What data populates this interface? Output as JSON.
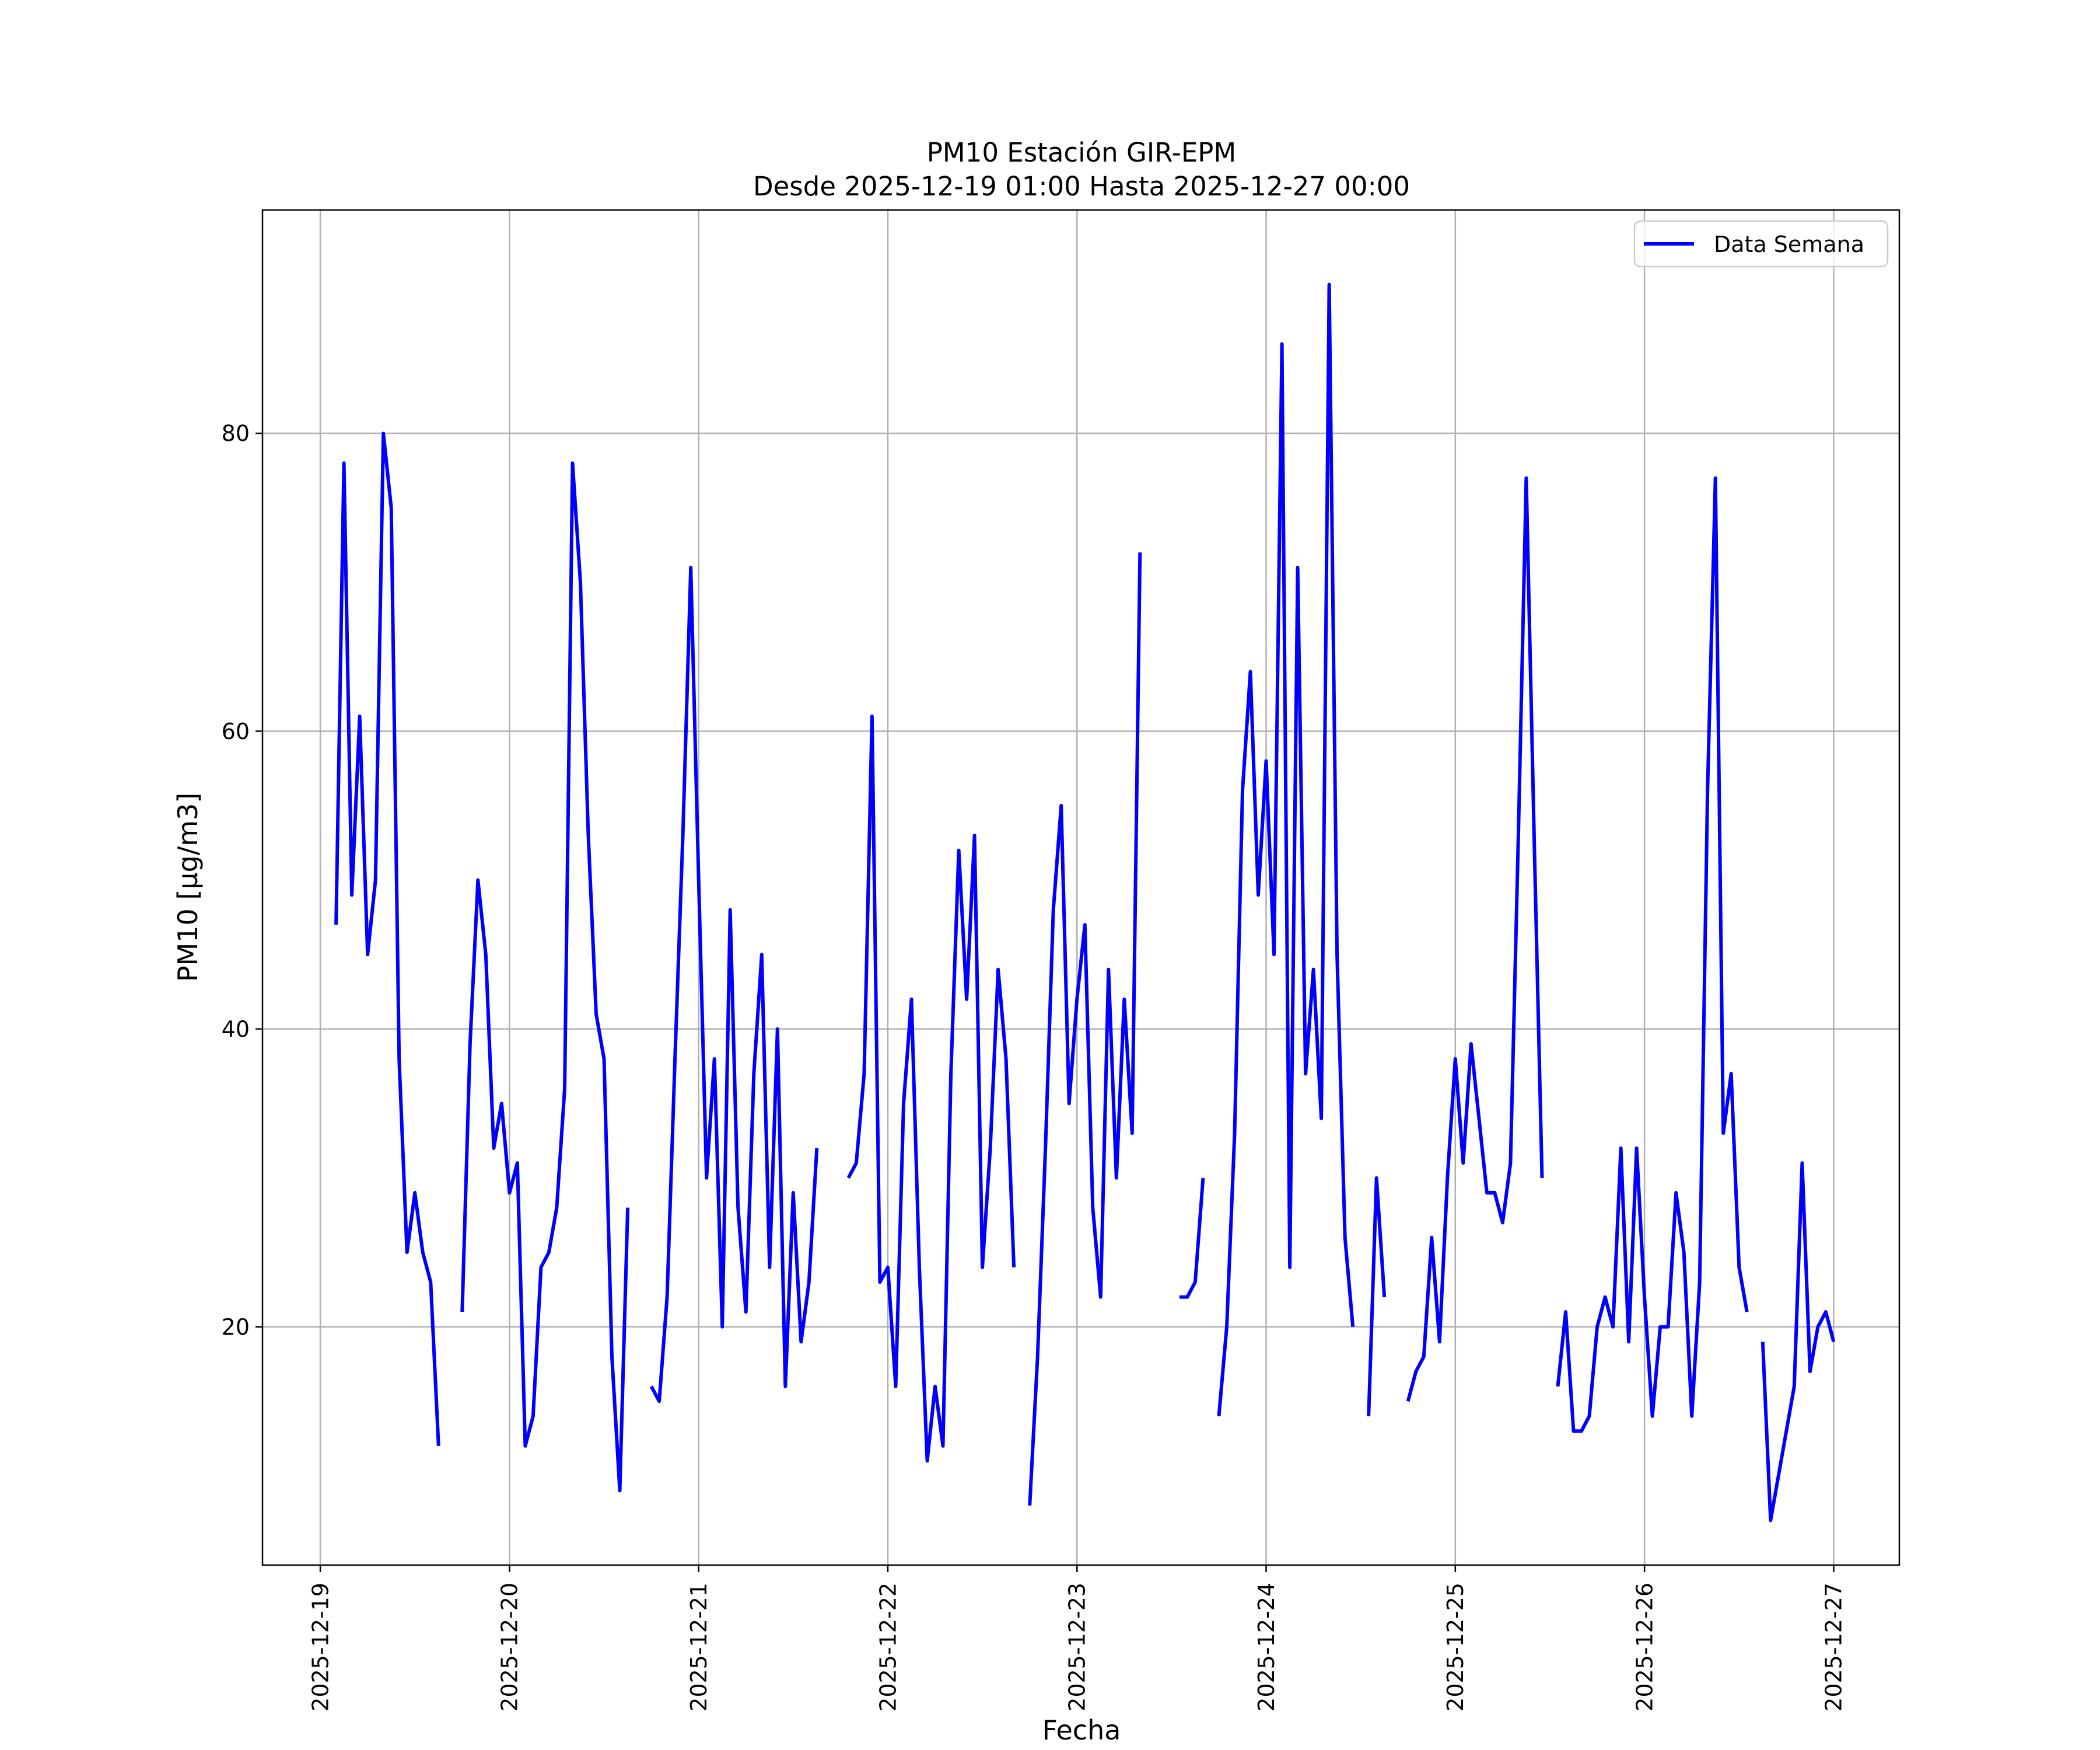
{
  "chart_data": {
    "type": "line",
    "title": "PM10 Estación GIR-EPM",
    "subtitle": "Desde 2025-12-19 01:00 Hasta 2025-12-27 00:00",
    "xlabel": "Fecha",
    "ylabel": "PM10 [μg/m3]",
    "xlim": [
      "2025-12-18 16:40",
      "2025-12-27 08:20"
    ],
    "ylim": [
      4,
      95
    ],
    "x_ticks": [
      "2025-12-19",
      "2025-12-20",
      "2025-12-21",
      "2025-12-22",
      "2025-12-23",
      "2025-12-24",
      "2025-12-25",
      "2025-12-26",
      "2025-12-27"
    ],
    "y_ticks": [
      20,
      40,
      60,
      80
    ],
    "grid": true,
    "legend": "top-right",
    "series": [
      {
        "name": "Data Semana",
        "color": "#0000ff",
        "segments": [
          [
            [
              "2025-12-19 02:00",
              47
            ],
            [
              "2025-12-19 03:00",
              78
            ],
            [
              "2025-12-19 04:00",
              49
            ],
            [
              "2025-12-19 05:00",
              61
            ],
            [
              "2025-12-19 06:00",
              45
            ],
            [
              "2025-12-19 07:00",
              50
            ],
            [
              "2025-12-19 08:00",
              80
            ],
            [
              "2025-12-19 09:00",
              75
            ],
            [
              "2025-12-19 10:00",
              38
            ],
            [
              "2025-12-19 11:00",
              25
            ],
            [
              "2025-12-19 12:00",
              29
            ],
            [
              "2025-12-19 13:00",
              25
            ],
            [
              "2025-12-19 14:00",
              23
            ],
            [
              "2025-12-19 15:00",
              12
            ]
          ],
          [
            [
              "2025-12-19 18:00",
              21
            ],
            [
              "2025-12-19 19:00",
              39
            ],
            [
              "2025-12-19 20:00",
              50
            ],
            [
              "2025-12-19 21:00",
              45
            ],
            [
              "2025-12-19 22:00",
              32
            ],
            [
              "2025-12-19 23:00",
              35
            ],
            [
              "2025-12-20 00:00",
              29
            ],
            [
              "2025-12-20 01:00",
              31
            ],
            [
              "2025-12-20 02:00",
              12
            ],
            [
              "2025-12-20 03:00",
              14
            ],
            [
              "2025-12-20 04:00",
              24
            ],
            [
              "2025-12-20 05:00",
              25
            ],
            [
              "2025-12-20 06:00",
              28
            ],
            [
              "2025-12-20 07:00",
              36
            ],
            [
              "2025-12-20 08:00",
              78
            ],
            [
              "2025-12-20 09:00",
              70
            ],
            [
              "2025-12-20 10:00",
              53
            ],
            [
              "2025-12-20 11:00",
              41
            ],
            [
              "2025-12-20 12:00",
              38
            ],
            [
              "2025-12-20 13:00",
              18
            ],
            [
              "2025-12-20 14:00",
              9
            ],
            [
              "2025-12-20 15:00",
              28
            ]
          ],
          [
            [
              "2025-12-20 18:00",
              16
            ],
            [
              "2025-12-20 19:00",
              15
            ],
            [
              "2025-12-20 20:00",
              22
            ],
            [
              "2025-12-20 21:00",
              38
            ],
            [
              "2025-12-20 22:00",
              53
            ],
            [
              "2025-12-20 23:00",
              71
            ],
            [
              "2025-12-21 00:00",
              50
            ],
            [
              "2025-12-21 01:00",
              30
            ],
            [
              "2025-12-21 02:00",
              38
            ],
            [
              "2025-12-21 03:00",
              20
            ],
            [
              "2025-12-21 04:00",
              48
            ],
            [
              "2025-12-21 05:00",
              28
            ],
            [
              "2025-12-21 06:00",
              21
            ],
            [
              "2025-12-21 07:00",
              37
            ],
            [
              "2025-12-21 08:00",
              45
            ],
            [
              "2025-12-21 09:00",
              24
            ],
            [
              "2025-12-21 10:00",
              40
            ],
            [
              "2025-12-21 11:00",
              16
            ],
            [
              "2025-12-21 12:00",
              29
            ],
            [
              "2025-12-21 13:00",
              19
            ],
            [
              "2025-12-21 14:00",
              23
            ],
            [
              "2025-12-21 15:00",
              32
            ]
          ],
          [
            [
              "2025-12-21 19:00",
              30
            ],
            [
              "2025-12-21 20:00",
              31
            ],
            [
              "2025-12-21 21:00",
              37
            ],
            [
              "2025-12-21 22:00",
              61
            ],
            [
              "2025-12-21 23:00",
              23
            ],
            [
              "2025-12-22 00:00",
              24
            ],
            [
              "2025-12-22 01:00",
              16
            ],
            [
              "2025-12-22 02:00",
              35
            ],
            [
              "2025-12-22 03:00",
              42
            ],
            [
              "2025-12-22 04:00",
              24
            ],
            [
              "2025-12-22 05:00",
              11
            ],
            [
              "2025-12-22 06:00",
              16
            ],
            [
              "2025-12-22 07:00",
              12
            ],
            [
              "2025-12-22 08:00",
              37
            ],
            [
              "2025-12-22 09:00",
              52
            ],
            [
              "2025-12-22 10:00",
              42
            ],
            [
              "2025-12-22 11:00",
              53
            ],
            [
              "2025-12-22 12:00",
              24
            ],
            [
              "2025-12-22 13:00",
              32
            ],
            [
              "2025-12-22 14:00",
              44
            ],
            [
              "2025-12-22 15:00",
              38
            ],
            [
              "2025-12-22 16:00",
              24
            ]
          ],
          [
            [
              "2025-12-22 18:00",
              8
            ],
            [
              "2025-12-22 19:00",
              18
            ],
            [
              "2025-12-22 20:00",
              32
            ],
            [
              "2025-12-22 21:00",
              48
            ],
            [
              "2025-12-22 22:00",
              55
            ],
            [
              "2025-12-22 23:00",
              35
            ],
            [
              "2025-12-23 00:00",
              42
            ],
            [
              "2025-12-23 01:00",
              47
            ],
            [
              "2025-12-23 02:00",
              28
            ],
            [
              "2025-12-23 03:00",
              22
            ],
            [
              "2025-12-23 04:00",
              44
            ],
            [
              "2025-12-23 05:00",
              30
            ],
            [
              "2025-12-23 06:00",
              42
            ],
            [
              "2025-12-23 07:00",
              33
            ],
            [
              "2025-12-23 08:00",
              72
            ]
          ],
          [
            [
              "2025-12-23 13:00",
              22
            ],
            [
              "2025-12-23 14:00",
              22
            ],
            [
              "2025-12-23 15:00",
              23
            ],
            [
              "2025-12-23 16:00",
              30
            ]
          ],
          [
            [
              "2025-12-23 18:00",
              14
            ],
            [
              "2025-12-23 19:00",
              20
            ],
            [
              "2025-12-23 20:00",
              33
            ],
            [
              "2025-12-23 21:00",
              56
            ],
            [
              "2025-12-23 22:00",
              64
            ],
            [
              "2025-12-23 23:00",
              49
            ],
            [
              "2025-12-24 00:00",
              58
            ],
            [
              "2025-12-24 01:00",
              45
            ],
            [
              "2025-12-24 02:00",
              86
            ],
            [
              "2025-12-24 03:00",
              24
            ],
            [
              "2025-12-24 04:00",
              71
            ],
            [
              "2025-12-24 05:00",
              37
            ],
            [
              "2025-12-24 06:00",
              44
            ],
            [
              "2025-12-24 07:00",
              34
            ],
            [
              "2025-12-24 08:00",
              90
            ],
            [
              "2025-12-24 09:00",
              45
            ],
            [
              "2025-12-24 10:00",
              26
            ],
            [
              "2025-12-24 11:00",
              20
            ]
          ],
          [
            [
              "2025-12-24 13:00",
              14
            ],
            [
              "2025-12-24 14:00",
              30
            ],
            [
              "2025-12-24 15:00",
              22
            ]
          ],
          [
            [
              "2025-12-24 18:00",
              15
            ],
            [
              "2025-12-24 19:00",
              17
            ],
            [
              "2025-12-24 20:00",
              18
            ],
            [
              "2025-12-24 21:00",
              26
            ],
            [
              "2025-12-24 22:00",
              19
            ],
            [
              "2025-12-24 23:00",
              30
            ],
            [
              "2025-12-25 00:00",
              38
            ],
            [
              "2025-12-25 01:00",
              31
            ],
            [
              "2025-12-25 02:00",
              39
            ],
            [
              "2025-12-25 03:00",
              34
            ],
            [
              "2025-12-25 04:00",
              29
            ],
            [
              "2025-12-25 05:00",
              29
            ],
            [
              "2025-12-25 06:00",
              27
            ],
            [
              "2025-12-25 07:00",
              31
            ],
            [
              "2025-12-25 08:00",
              53
            ],
            [
              "2025-12-25 09:00",
              77
            ],
            [
              "2025-12-25 10:00",
              53
            ],
            [
              "2025-12-25 11:00",
              30
            ]
          ],
          [
            [
              "2025-12-25 13:00",
              16
            ],
            [
              "2025-12-25 14:00",
              21
            ],
            [
              "2025-12-25 15:00",
              13
            ],
            [
              "2025-12-25 16:00",
              13
            ],
            [
              "2025-12-25 17:00",
              14
            ],
            [
              "2025-12-25 18:00",
              20
            ],
            [
              "2025-12-25 19:00",
              22
            ],
            [
              "2025-12-25 20:00",
              20
            ],
            [
              "2025-12-25 21:00",
              32
            ],
            [
              "2025-12-25 22:00",
              19
            ],
            [
              "2025-12-25 23:00",
              32
            ],
            [
              "2025-12-26 00:00",
              22
            ],
            [
              "2025-12-26 01:00",
              14
            ],
            [
              "2025-12-26 02:00",
              20
            ],
            [
              "2025-12-26 03:00",
              20
            ],
            [
              "2025-12-26 04:00",
              29
            ],
            [
              "2025-12-26 05:00",
              25
            ],
            [
              "2025-12-26 06:00",
              14
            ],
            [
              "2025-12-26 07:00",
              23
            ],
            [
              "2025-12-26 08:00",
              56
            ],
            [
              "2025-12-26 09:00",
              77
            ],
            [
              "2025-12-26 10:00",
              33
            ],
            [
              "2025-12-26 11:00",
              37
            ],
            [
              "2025-12-26 12:00",
              24
            ],
            [
              "2025-12-26 13:00",
              21
            ]
          ],
          [
            [
              "2025-12-26 15:00",
              19
            ],
            [
              "2025-12-26 16:00",
              7
            ],
            [
              "2025-12-26 17:00",
              10
            ],
            [
              "2025-12-26 18:00",
              13
            ],
            [
              "2025-12-26 19:00",
              16
            ],
            [
              "2025-12-26 20:00",
              31
            ],
            [
              "2025-12-26 21:00",
              17
            ],
            [
              "2025-12-26 22:00",
              20
            ],
            [
              "2025-12-26 23:00",
              21
            ],
            [
              "2025-12-27 00:00",
              19
            ]
          ]
        ]
      }
    ]
  }
}
